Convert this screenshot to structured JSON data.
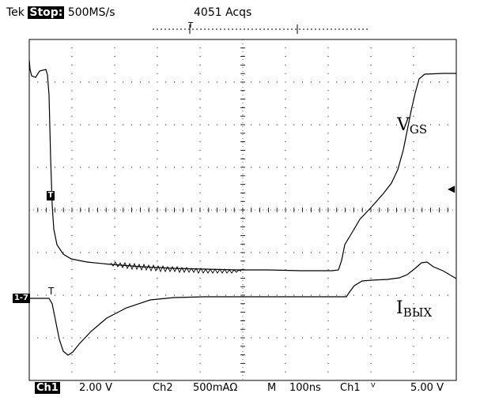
{
  "header": {
    "brand": "Tek",
    "status": "Stop:",
    "sample_rate": "500MS/s",
    "acquisitions": "4051 Acqs",
    "trigger_position_marker": "T"
  },
  "traces": {
    "ch1_label": "V",
    "ch1_label_sub": "GS",
    "ch2_label": "I",
    "ch2_label_sub": "ВЫХ",
    "ch1_marker": "T",
    "ch2_marker": "1-7",
    "ch2_trigger_tick": "T"
  },
  "footer": {
    "ch1": "Ch1",
    "ch1_scale": "2.00 V",
    "ch2": "Ch2",
    "ch2_scale": "500mAΩ",
    "timebase_label": "M",
    "timebase": "100ns",
    "trigger_source": "Ch1",
    "trigger_slope": "ⱽ",
    "trigger_level": "5.00 V"
  },
  "colors": {
    "trace": "#000000",
    "background": "#ffffff",
    "grid": "#000000"
  }
}
